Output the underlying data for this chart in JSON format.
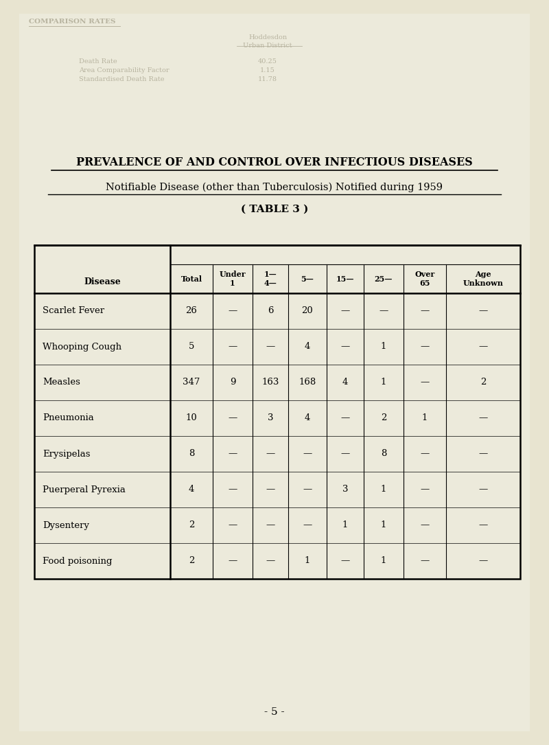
{
  "title1": "PREVALENCE OF AND CONTROL OVER INFECTIOUS DISEASES",
  "title2": "Notifiable Disease (other than Tuberculosis) Notified during 1959",
  "title3": "( TABLE 3 )",
  "bg_color": "#e8e4d0",
  "inner_bg": "#edeadc",
  "ghost_color": "#b8b4a0",
  "col_headers": [
    "Disease",
    "Total",
    "Under\n1",
    "1—\n4—",
    "5—",
    "15—",
    "25—",
    "Over\n65",
    "Age\nUnknown"
  ],
  "rows": [
    [
      "Scarlet Fever",
      "26",
      "—",
      "6",
      "20",
      "—",
      "—",
      "—",
      "—"
    ],
    [
      "Whooping Cough",
      "5",
      "—",
      "—",
      "4",
      "—",
      "1",
      "—",
      "—"
    ],
    [
      "Measles",
      "347",
      "9",
      "163",
      "168",
      "4",
      "1",
      "—",
      "2"
    ],
    [
      "Pneumonia",
      "10",
      "—",
      "3",
      "4",
      "—",
      "2",
      "1",
      "—"
    ],
    [
      "Erysipelas",
      "8",
      "—",
      "—",
      "—",
      "—",
      "8",
      "—",
      "—"
    ],
    [
      "Puerperal Pyrexia",
      "4",
      "—",
      "—",
      "—",
      "3",
      "1",
      "—",
      "—"
    ],
    [
      "Dysentery",
      "2",
      "—",
      "—",
      "—",
      "1",
      "1",
      "—",
      "—"
    ],
    [
      "Food poisoning",
      "2",
      "—",
      "—",
      "1",
      "—",
      "1",
      "—",
      "—"
    ]
  ],
  "footer": "- 5 -"
}
